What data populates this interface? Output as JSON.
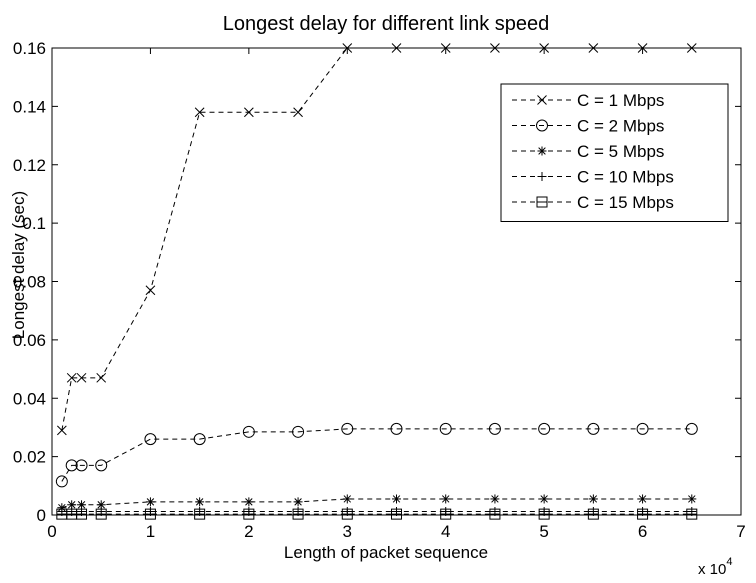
{
  "chart_data": {
    "type": "line",
    "title": "Longest delay for different link speed",
    "xlabel": "Length of packet sequence",
    "ylabel": "Longest delay  (sec)",
    "x_multiplier_label": "x 10",
    "x_multiplier_exponent": "4",
    "xlim": [
      0,
      7
    ],
    "ylim": [
      0,
      0.16
    ],
    "x_ticks": [
      "0",
      "1",
      "2",
      "3",
      "4",
      "5",
      "6",
      "7"
    ],
    "y_ticks": [
      "0",
      "0.02",
      "0.04",
      "0.06",
      "0.08",
      "0.1",
      "0.12",
      "0.14",
      "0.16"
    ],
    "grid": false,
    "legend_position": "top-right",
    "x": [
      0.1,
      0.2,
      0.3,
      0.5,
      1,
      1.5,
      2,
      2.5,
      3,
      3.5,
      4,
      4.5,
      5,
      5.5,
      6,
      6.5
    ],
    "series": [
      {
        "name": "C = 1 Mbps",
        "marker": "x",
        "values": [
          0.029,
          0.047,
          0.047,
          0.047,
          0.077,
          0.138,
          0.138,
          0.138,
          0.16,
          0.16,
          0.16,
          0.16,
          0.16,
          0.16,
          0.16,
          0.16
        ]
      },
      {
        "name": "C = 2 Mbps",
        "marker": "circle",
        "values": [
          0.0115,
          0.017,
          0.017,
          0.017,
          0.026,
          0.026,
          0.0285,
          0.0285,
          0.0295,
          0.0295,
          0.0295,
          0.0295,
          0.0295,
          0.0295,
          0.0295,
          0.0295
        ]
      },
      {
        "name": "C = 5 Mbps",
        "marker": "star",
        "values": [
          0.0025,
          0.0035,
          0.0035,
          0.0035,
          0.0045,
          0.0045,
          0.0045,
          0.0045,
          0.0055,
          0.0055,
          0.0055,
          0.0055,
          0.0055,
          0.0055,
          0.0055,
          0.0055
        ]
      },
      {
        "name": "C = 10 Mbps",
        "marker": "plus",
        "values": [
          0.0012,
          0.0012,
          0.0012,
          0.0012,
          0.0012,
          0.0012,
          0.0012,
          0.0012,
          0.0012,
          0.0012,
          0.0012,
          0.0012,
          0.0012,
          0.0012,
          0.0012,
          0.0012
        ]
      },
      {
        "name": "C = 15 Mbps",
        "marker": "square",
        "values": [
          0.0003,
          0.0003,
          0.0003,
          0.0003,
          0.0003,
          0.0003,
          0.0003,
          0.0003,
          0.0003,
          0.0003,
          0.0003,
          0.0003,
          0.0003,
          0.0003,
          0.0003,
          0.0003
        ]
      }
    ]
  }
}
